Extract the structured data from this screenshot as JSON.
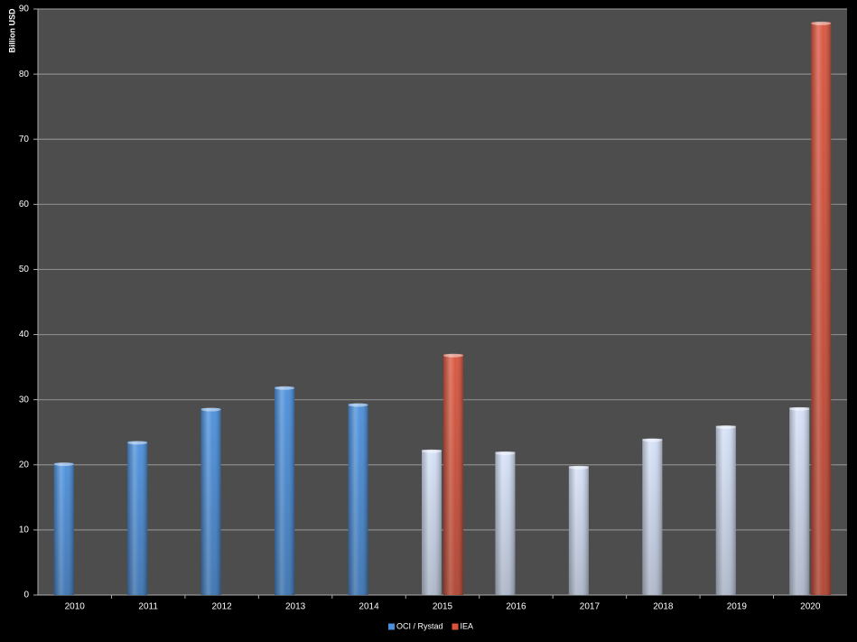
{
  "chart_data": {
    "type": "bar",
    "y_label": "Billion USD",
    "categories": [
      "2010",
      "2011",
      "2012",
      "2013",
      "2014",
      "2015",
      "2016",
      "2017",
      "2018",
      "2019",
      "2020"
    ],
    "series": [
      {
        "name": "OCI / Rystad",
        "color": "#4a8fdc",
        "colors": [
          "#4a8fdc",
          "#4a8fdc",
          "#4a8fdc",
          "#4a8fdc",
          "#4a8fdc",
          "#d4e0f7",
          "#d4e0f7",
          "#d4e0f7",
          "#d4e0f7",
          "#d4e0f7",
          "#d4e0f7"
        ],
        "values": [
          20.3,
          23.6,
          28.7,
          32,
          29.4,
          22.3,
          22,
          19.8,
          24,
          26,
          28.8
        ]
      },
      {
        "name": "IEA",
        "color": "#d9533c",
        "values": [
          null,
          null,
          null,
          null,
          null,
          37,
          null,
          null,
          null,
          null,
          88
        ]
      }
    ],
    "ylim": [
      0,
      90
    ],
    "yticks": [
      0,
      10,
      20,
      30,
      40,
      50,
      60,
      70,
      80,
      90
    ],
    "grid": true,
    "legend": "bottom"
  }
}
